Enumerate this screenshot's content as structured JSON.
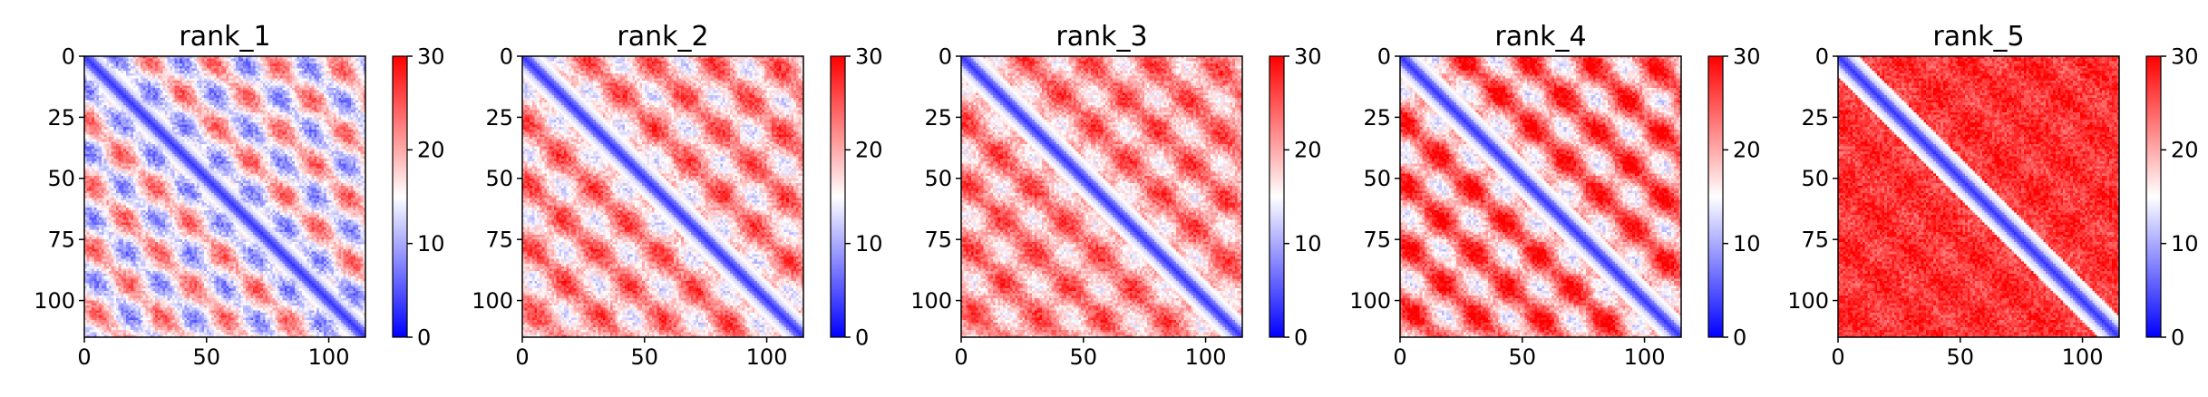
{
  "chart_data": [
    {
      "type": "heatmap",
      "title": "rank_1",
      "xlim": [
        0,
        115
      ],
      "ylim": [
        115,
        0
      ],
      "xticks": [
        0,
        50,
        100
      ],
      "yticks": [
        0,
        25,
        50,
        75,
        100
      ],
      "colorbar": {
        "range": [
          0,
          30
        ],
        "ticks": [
          0,
          10,
          20,
          30
        ],
        "cmap": "bwr",
        "colors": [
          "#0000ff",
          "#ffffff",
          "#ff0000"
        ]
      },
      "matrix_size": 115,
      "structure": {
        "diagonal_value": 3,
        "background_value": 16,
        "contrast": 10,
        "period": 25
      }
    },
    {
      "type": "heatmap",
      "title": "rank_2",
      "xlim": [
        0,
        115
      ],
      "ylim": [
        115,
        0
      ],
      "xticks": [
        0,
        50,
        100
      ],
      "yticks": [
        0,
        25,
        50,
        75,
        100
      ],
      "colorbar": {
        "range": [
          0,
          30
        ],
        "ticks": [
          0,
          10,
          20,
          30
        ],
        "cmap": "bwr",
        "colors": [
          "#0000ff",
          "#ffffff",
          "#ff0000"
        ]
      },
      "matrix_size": 115,
      "structure": {
        "diagonal_value": 3,
        "background_value": 20,
        "contrast": 8,
        "period": 25
      }
    },
    {
      "type": "heatmap",
      "title": "rank_3",
      "xlim": [
        0,
        115
      ],
      "ylim": [
        115,
        0
      ],
      "xticks": [
        0,
        50,
        100
      ],
      "yticks": [
        0,
        25,
        50,
        75,
        100
      ],
      "colorbar": {
        "range": [
          0,
          30
        ],
        "ticks": [
          0,
          10,
          20,
          30
        ],
        "cmap": "bwr",
        "colors": [
          "#0000ff",
          "#ffffff",
          "#ff0000"
        ]
      },
      "matrix_size": 115,
      "structure": {
        "diagonal_value": 3,
        "background_value": 21,
        "contrast": 7,
        "period": 25
      }
    },
    {
      "type": "heatmap",
      "title": "rank_4",
      "xlim": [
        0,
        115
      ],
      "ylim": [
        115,
        0
      ],
      "xticks": [
        0,
        50,
        100
      ],
      "yticks": [
        0,
        25,
        50,
        75,
        100
      ],
      "colorbar": {
        "range": [
          0,
          30
        ],
        "ticks": [
          0,
          10,
          20,
          30
        ],
        "cmap": "bwr",
        "colors": [
          "#0000ff",
          "#ffffff",
          "#ff0000"
        ]
      },
      "matrix_size": 115,
      "structure": {
        "diagonal_value": 3,
        "background_value": 22,
        "contrast": 10,
        "period": 25
      }
    },
    {
      "type": "heatmap",
      "title": "rank_5",
      "xlim": [
        0,
        115
      ],
      "ylim": [
        115,
        0
      ],
      "xticks": [
        0,
        50,
        100
      ],
      "yticks": [
        0,
        25,
        50,
        75,
        100
      ],
      "colorbar": {
        "range": [
          0,
          30
        ],
        "ticks": [
          0,
          10,
          20,
          30
        ],
        "cmap": "bwr",
        "colors": [
          "#0000ff",
          "#ffffff",
          "#ff0000"
        ]
      },
      "matrix_size": 115,
      "structure": {
        "diagonal_value": 3,
        "background_value": 27,
        "contrast": 2,
        "period": 25
      }
    }
  ]
}
